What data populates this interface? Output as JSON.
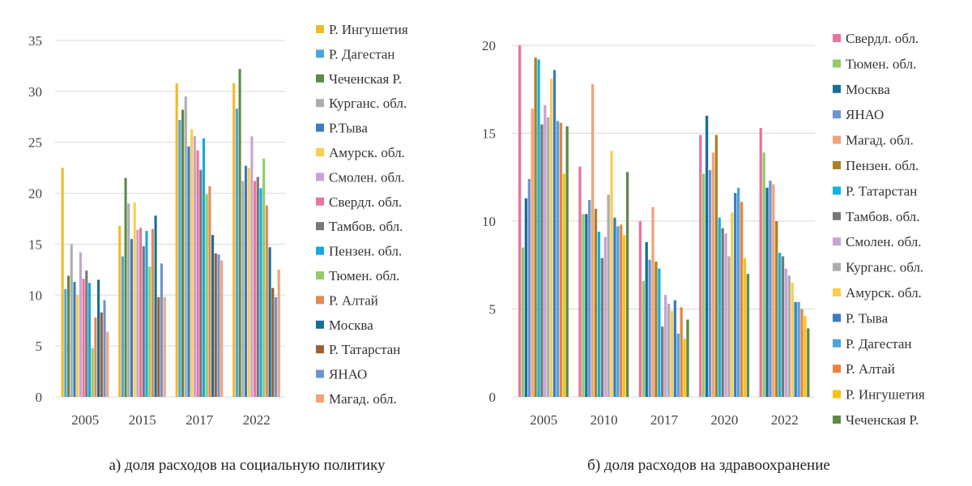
{
  "colors": {
    "ingush": "#F1BA2A",
    "dagestan": "#4FA3DB",
    "chechen": "#5F8A45",
    "kurgan": "#ADADAD",
    "tyva": "#3C7CC0",
    "amur": "#F8CE4C",
    "smolensk": "#C7A3D3",
    "sverdl": "#E9749A",
    "tambov": "#777777",
    "penza": "#13A9DF",
    "tyumen": "#91CB6A",
    "altai": "#E48B51",
    "moscow": "#176E96",
    "tatarstan": "#9A6036",
    "yanao": "#6D93D1",
    "magadan": "#F0A47A",
    "penza_b": "#A98225",
    "tatarstan_b": "#10B1E4",
    "altai_b": "#EB843E",
    "ingush_b": "#F5C318"
  },
  "chart_data": [
    {
      "type": "bar",
      "caption": "а) доля расходов на социальную политику",
      "categories": [
        "2005",
        "2015",
        "2017",
        "2022"
      ],
      "ylim": [
        0,
        35
      ],
      "yticks": [
        "0",
        "5",
        "10",
        "15",
        "20",
        "25",
        "30",
        "35"
      ],
      "grid": true,
      "legend_position": "right",
      "series": [
        {
          "name": "Р. Ингушетия",
          "color_key": "ingush",
          "values": [
            22.5,
            16.8,
            30.8,
            30.8
          ]
        },
        {
          "name": "Р. Дагестан",
          "color_key": "dagestan",
          "values": [
            10.6,
            13.8,
            27.2,
            28.3
          ]
        },
        {
          "name": "Чеченская Р.",
          "color_key": "chechen",
          "values": [
            11.9,
            21.5,
            28.2,
            32.2
          ]
        },
        {
          "name": "Курганс. обл.",
          "color_key": "kurgan",
          "values": [
            15.0,
            19.0,
            29.5,
            21.2
          ]
        },
        {
          "name": "Р.Тыва",
          "color_key": "tyva",
          "values": [
            11.3,
            15.5,
            24.6,
            22.7
          ]
        },
        {
          "name": "Амурск. обл.",
          "color_key": "amur",
          "values": [
            10.0,
            19.1,
            26.3,
            22.5
          ]
        },
        {
          "name": "Смолен. обл.",
          "color_key": "smolensk",
          "values": [
            14.2,
            16.4,
            25.6,
            25.6
          ]
        },
        {
          "name": "Свердл. обл.",
          "color_key": "sverdl",
          "values": [
            11.6,
            16.6,
            24.2,
            21.2
          ]
        },
        {
          "name": "Тамбов. обл.",
          "color_key": "tambov",
          "values": [
            12.4,
            14.8,
            22.3,
            21.6
          ]
        },
        {
          "name": "Пензен. обл.",
          "color_key": "penza",
          "values": [
            11.2,
            16.3,
            25.4,
            20.5
          ]
        },
        {
          "name": "Тюмен. обл.",
          "color_key": "tyumen",
          "values": [
            4.8,
            12.8,
            19.9,
            23.4
          ]
        },
        {
          "name": "Р. Алтай",
          "color_key": "altai",
          "values": [
            7.8,
            16.5,
            20.7,
            18.8
          ]
        },
        {
          "name": "Москва",
          "color_key": "moscow",
          "values": [
            11.5,
            17.8,
            15.9,
            14.7
          ]
        },
        {
          "name": "Р. Татарстан",
          "color_key": "tatarstan",
          "values": [
            8.3,
            9.8,
            14.1,
            10.7
          ]
        },
        {
          "name": "ЯНАО",
          "color_key": "yanao",
          "values": [
            9.5,
            13.1,
            14.0,
            9.8
          ]
        },
        {
          "name": "Магад. обл.",
          "color_key": "magadan",
          "values": [
            6.4,
            9.8,
            13.4,
            12.5
          ]
        }
      ]
    },
    {
      "type": "bar",
      "caption": "б) доля расходов на здравоохранение",
      "categories": [
        "2005",
        "2010",
        "2017",
        "2020",
        "2022"
      ],
      "ylim": [
        0,
        20
      ],
      "yticks": [
        "0",
        "5",
        "10",
        "15",
        "20"
      ],
      "grid": true,
      "legend_position": "right",
      "series": [
        {
          "name": "Свердл. обл.",
          "color_key": "sverdl",
          "values": [
            20.0,
            13.1,
            10.0,
            14.9,
            15.3
          ]
        },
        {
          "name": "Тюмен. обл.",
          "color_key": "tyumen",
          "values": [
            8.5,
            10.4,
            6.6,
            12.7,
            13.9
          ]
        },
        {
          "name": "Москва",
          "color_key": "moscow",
          "values": [
            11.3,
            10.4,
            8.8,
            16.0,
            11.9
          ]
        },
        {
          "name": "ЯНАО",
          "color_key": "yanao",
          "values": [
            12.4,
            11.2,
            7.8,
            12.9,
            12.3
          ]
        },
        {
          "name": "Магад. обл.",
          "color_key": "magadan",
          "values": [
            16.4,
            17.8,
            10.8,
            13.9,
            12.1
          ]
        },
        {
          "name": "Пензен. обл.",
          "color_key": "penza_b",
          "values": [
            19.3,
            10.7,
            7.7,
            14.9,
            10.0
          ]
        },
        {
          "name": "Р. Татарстан",
          "color_key": "tatarstan_b",
          "values": [
            19.2,
            9.4,
            7.3,
            10.2,
            8.2
          ]
        },
        {
          "name": "Тамбов. обл.",
          "color_key": "tambov",
          "values": [
            15.5,
            7.9,
            4.0,
            9.6,
            8.0
          ]
        },
        {
          "name": "Смолен. обл.",
          "color_key": "smolensk",
          "values": [
            16.6,
            9.1,
            5.8,
            9.3,
            7.3
          ]
        },
        {
          "name": "Курганс. обл.",
          "color_key": "kurgan",
          "values": [
            15.9,
            11.5,
            5.3,
            8.0,
            6.9
          ]
        },
        {
          "name": "Амурск. обл.",
          "color_key": "amur",
          "values": [
            18.1,
            14.0,
            4.9,
            10.5,
            6.5
          ]
        },
        {
          "name": "Р. Тыва",
          "color_key": "tyva",
          "values": [
            18.6,
            10.2,
            5.5,
            11.6,
            5.4
          ]
        },
        {
          "name": "Р. Дагестан",
          "color_key": "dagestan",
          "values": [
            15.7,
            9.7,
            3.6,
            11.9,
            5.4
          ]
        },
        {
          "name": "Р. Алтай",
          "color_key": "altai_b",
          "values": [
            15.6,
            9.8,
            5.1,
            11.1,
            5.0
          ]
        },
        {
          "name": "Р. Ингушетия",
          "color_key": "ingush_b",
          "values": [
            12.7,
            9.2,
            3.3,
            7.9,
            4.6
          ]
        },
        {
          "name": "Чеченская Р.",
          "color_key": "chechen",
          "values": [
            15.4,
            12.8,
            4.4,
            7.0,
            3.9
          ]
        }
      ]
    }
  ]
}
